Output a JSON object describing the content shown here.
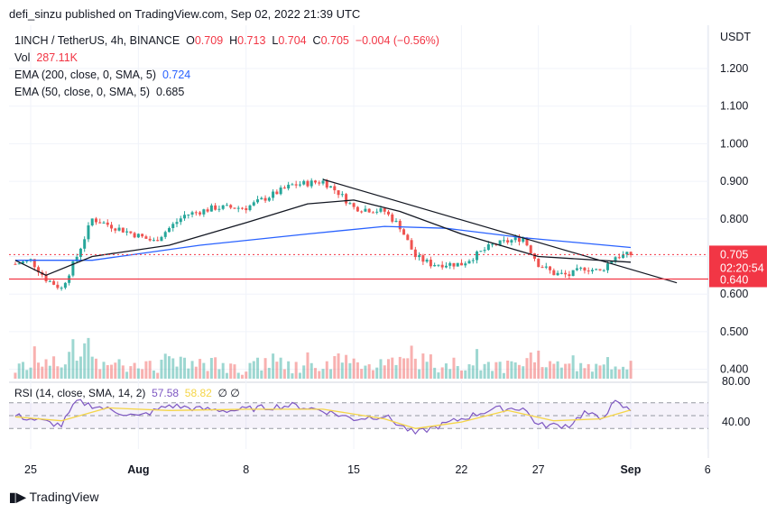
{
  "header": {
    "publisher_line": "defi_sinzu published on TradingView.com, Sep 02, 2022 21:39 UTC"
  },
  "legend": {
    "symbol": "1INCH / TetherUS, 4h, BINANCE",
    "o_label": "O",
    "o_value": "0.709",
    "h_label": "H",
    "h_value": "0.713",
    "l_label": "L",
    "l_value": "0.704",
    "c_label": "C",
    "c_value": "0.705",
    "change": "−0.004 (−0.56%)",
    "vol_label": "Vol",
    "vol_value": "287.11K",
    "ema200_label": "EMA (200, close, 0, SMA, 5)",
    "ema200_value": "0.724",
    "ema50_label": "EMA (50, close, 0, SMA, 5)",
    "ema50_value": "0.685"
  },
  "rsi_legend": {
    "label": "RSI (14, close, SMA, 14, 2)",
    "value": "57.58",
    "ma_value": "58.82",
    "extra": "∅ ∅"
  },
  "colors": {
    "up": "#26a69a",
    "down": "#ef5350",
    "ema200": "#2962ff",
    "ema50": "#131722",
    "rsi": "#7e57c2",
    "rsi_ma": "#f5d547",
    "support": "#f23645"
  },
  "chart_data": [
    {
      "type": "candlestick",
      "price_axis": {
        "currency": "USDT",
        "ticks": [
          "1.200",
          "1.100",
          "1.000",
          "0.900",
          "0.800",
          "0.700",
          "0.600",
          "0.500",
          "0.400"
        ],
        "ylim": [
          0.38,
          1.25
        ]
      },
      "time_axis": {
        "ticks": [
          "25",
          "Aug",
          "8",
          "15",
          "22",
          "27",
          "Sep",
          "6"
        ]
      },
      "last_price": "0.705",
      "countdown": "02:20:54",
      "support_level": "0.640",
      "close_path": [
        [
          "Jul 24",
          0.68
        ],
        [
          "Jul 25",
          0.69
        ],
        [
          "Jul 26",
          0.64
        ],
        [
          "Jul 27",
          0.615
        ],
        [
          "Jul 28",
          0.7
        ],
        [
          "Jul 29",
          0.8
        ],
        [
          "Jul 31",
          0.77
        ],
        [
          "Aug 2",
          0.74
        ],
        [
          "Aug 4",
          0.81
        ],
        [
          "Aug 6",
          0.83
        ],
        [
          "Aug 8",
          0.83
        ],
        [
          "Aug 10",
          0.87
        ],
        [
          "Aug 11",
          0.89
        ],
        [
          "Aug 13",
          0.9
        ],
        [
          "Aug 14",
          0.87
        ],
        [
          "Aug 15",
          0.83
        ],
        [
          "Aug 17",
          0.82
        ],
        [
          "Aug 18",
          0.78
        ],
        [
          "Aug 19",
          0.7
        ],
        [
          "Aug 20",
          0.68
        ],
        [
          "Aug 22",
          0.68
        ],
        [
          "Aug 24",
          0.73
        ],
        [
          "Aug 26",
          0.75
        ],
        [
          "Aug 27",
          0.68
        ],
        [
          "Aug 28",
          0.655
        ],
        [
          "Aug 29",
          0.65
        ],
        [
          "Aug 30",
          0.67
        ],
        [
          "Aug 31",
          0.66
        ],
        [
          "Sep 1",
          0.7
        ],
        [
          "Sep 2",
          0.705
        ]
      ],
      "ema200": [
        [
          "Jul 24",
          0.69
        ],
        [
          "Jul 29",
          0.69
        ],
        [
          "Aug 5",
          0.73
        ],
        [
          "Aug 12",
          0.76
        ],
        [
          "Aug 17",
          0.78
        ],
        [
          "Aug 21",
          0.775
        ],
        [
          "Aug 26",
          0.75
        ],
        [
          "Sep 2",
          0.724
        ]
      ],
      "ema50": [
        [
          "Jul 24",
          0.69
        ],
        [
          "Jul 26",
          0.65
        ],
        [
          "Jul 29",
          0.7
        ],
        [
          "Aug 3",
          0.73
        ],
        [
          "Aug 8",
          0.79
        ],
        [
          "Aug 12",
          0.84
        ],
        [
          "Aug 15",
          0.85
        ],
        [
          "Aug 18",
          0.82
        ],
        [
          "Aug 22",
          0.76
        ],
        [
          "Aug 27",
          0.7
        ],
        [
          "Sep 2",
          0.685
        ]
      ],
      "trendline": [
        [
          "Aug 13",
          0.905
        ],
        [
          "Sep 5",
          0.63
        ]
      ]
    },
    {
      "type": "line",
      "name": "RSI",
      "axis_ticks": [
        "80.00",
        "40.00"
      ],
      "ylim": [
        15,
        85
      ],
      "bands": [
        70,
        50,
        30
      ],
      "rsi": [
        [
          "Jul 24",
          50
        ],
        [
          "Jul 26",
          40
        ],
        [
          "Jul 27",
          35
        ],
        [
          "Jul 28",
          72
        ],
        [
          "Jul 30",
          60
        ],
        [
          "Aug 1",
          48
        ],
        [
          "Aug 3",
          66
        ],
        [
          "Aug 5",
          60
        ],
        [
          "Aug 7",
          58
        ],
        [
          "Aug 9",
          62
        ],
        [
          "Aug 11",
          66
        ],
        [
          "Aug 13",
          58
        ],
        [
          "Aug 15",
          45
        ],
        [
          "Aug 17",
          50
        ],
        [
          "Aug 18",
          35
        ],
        [
          "Aug 19",
          22
        ],
        [
          "Aug 20",
          30
        ],
        [
          "Aug 22",
          45
        ],
        [
          "Aug 24",
          60
        ],
        [
          "Aug 26",
          62
        ],
        [
          "Aug 27",
          35
        ],
        [
          "Aug 29",
          35
        ],
        [
          "Aug 30",
          55
        ],
        [
          "Aug 31",
          45
        ],
        [
          "Sep 1",
          70
        ],
        [
          "Sep 2",
          57.58
        ]
      ],
      "rsi_ma": [
        [
          "Jul 24",
          48
        ],
        [
          "Jul 27",
          42
        ],
        [
          "Jul 30",
          62
        ],
        [
          "Aug 3",
          58
        ],
        [
          "Aug 8",
          60
        ],
        [
          "Aug 13",
          60
        ],
        [
          "Aug 17",
          45
        ],
        [
          "Aug 19",
          30
        ],
        [
          "Aug 22",
          40
        ],
        [
          "Aug 25",
          58
        ],
        [
          "Aug 28",
          42
        ],
        [
          "Aug 31",
          45
        ],
        [
          "Sep 2",
          58.82
        ]
      ]
    }
  ],
  "footer": {
    "brand": "TradingView"
  }
}
